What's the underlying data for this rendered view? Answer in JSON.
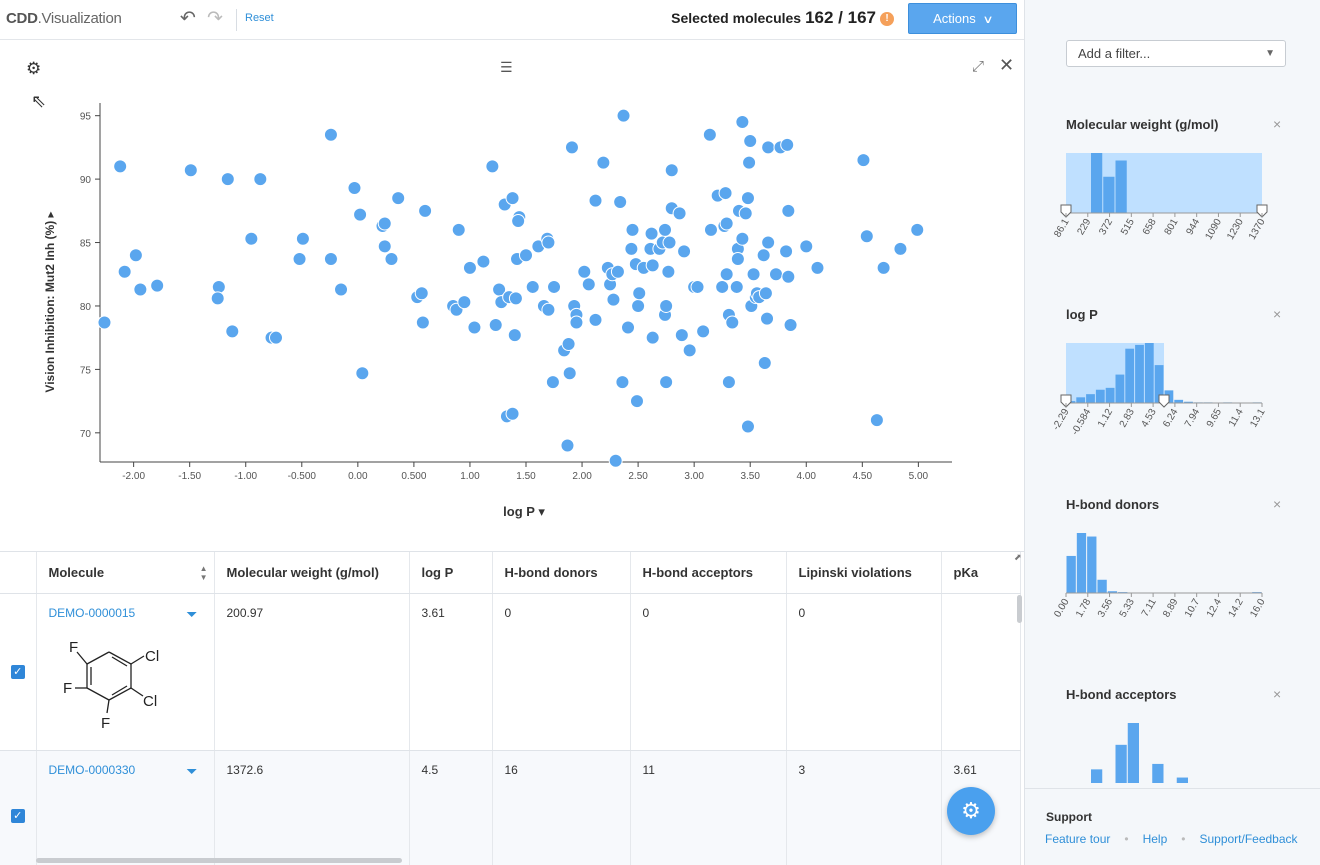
{
  "header": {
    "logo_bold": "CDD",
    "logo_rest": "Visualization",
    "reset_label": "Reset",
    "selected_label": "Selected molecules",
    "selected_count": "162 / 167",
    "warn_glyph": "!",
    "actions_label": "Actions"
  },
  "plot": {
    "y_axis_label": "Vision Inhibition: Mut2 Inh (%)",
    "x_axis_label": "log P"
  },
  "chart_data": {
    "type": "scatter",
    "xlabel": "log P",
    "ylabel": "Vision Inhibition: Mut2 Inh (%)",
    "xlim": [
      -2.3,
      5.3
    ],
    "ylim": [
      67.7,
      96
    ],
    "x_ticks": [
      "-2.00",
      "-1.50",
      "-1.00",
      "-0.500",
      "0.00",
      "0.500",
      "1.00",
      "1.50",
      "2.00",
      "2.50",
      "3.00",
      "3.50",
      "4.00",
      "4.50",
      "5.00"
    ],
    "y_ticks": [
      "95",
      "90",
      "85",
      "80",
      "75",
      "70"
    ],
    "grid": false,
    "point_color": "#5aa6ee",
    "points": [
      [
        -2.26,
        78.7
      ],
      [
        -2.12,
        91.0
      ],
      [
        -2.08,
        82.7
      ],
      [
        -1.98,
        84.0
      ],
      [
        -1.94,
        81.3
      ],
      [
        -1.79,
        81.6
      ],
      [
        -1.49,
        90.7
      ],
      [
        -1.24,
        81.5
      ],
      [
        -1.25,
        80.6
      ],
      [
        -1.16,
        90.0
      ],
      [
        -1.12,
        78.0
      ],
      [
        -0.95,
        85.3
      ],
      [
        -0.87,
        90.0
      ],
      [
        -0.77,
        77.5
      ],
      [
        -0.73,
        77.5
      ],
      [
        -0.52,
        83.7
      ],
      [
        -0.49,
        85.3
      ],
      [
        -0.24,
        93.5
      ],
      [
        -0.24,
        83.7
      ],
      [
        -0.15,
        81.3
      ],
      [
        -0.03,
        89.3
      ],
      [
        0.02,
        87.2
      ],
      [
        0.04,
        74.7
      ],
      [
        0.22,
        86.3
      ],
      [
        0.24,
        86.5
      ],
      [
        0.24,
        84.7
      ],
      [
        0.3,
        83.7
      ],
      [
        0.36,
        88.5
      ],
      [
        0.53,
        80.7
      ],
      [
        0.57,
        81.0
      ],
      [
        0.58,
        78.7
      ],
      [
        0.6,
        87.5
      ],
      [
        0.85,
        80.0
      ],
      [
        0.9,
        86.0
      ],
      [
        0.88,
        79.7
      ],
      [
        0.95,
        80.3
      ],
      [
        1.0,
        83.0
      ],
      [
        1.04,
        78.3
      ],
      [
        1.12,
        83.5
      ],
      [
        1.2,
        91.0
      ],
      [
        1.23,
        78.5
      ],
      [
        1.26,
        81.3
      ],
      [
        1.28,
        80.3
      ],
      [
        1.31,
        88.0
      ],
      [
        1.33,
        71.3
      ],
      [
        1.35,
        80.7
      ],
      [
        1.38,
        71.5
      ],
      [
        1.38,
        88.5
      ],
      [
        1.4,
        77.7
      ],
      [
        1.41,
        80.6
      ],
      [
        1.44,
        87.0
      ],
      [
        1.42,
        83.7
      ],
      [
        1.43,
        86.7
      ],
      [
        1.5,
        84.0
      ],
      [
        1.56,
        81.5
      ],
      [
        1.61,
        84.7
      ],
      [
        1.66,
        80.0
      ],
      [
        1.69,
        85.3
      ],
      [
        1.7,
        85.0
      ],
      [
        1.7,
        79.7
      ],
      [
        1.74,
        74.0
      ],
      [
        1.75,
        81.5
      ],
      [
        1.84,
        76.5
      ],
      [
        1.87,
        69.0
      ],
      [
        1.88,
        77.0
      ],
      [
        1.89,
        74.7
      ],
      [
        1.91,
        92.5
      ],
      [
        1.93,
        80.0
      ],
      [
        1.95,
        79.3
      ],
      [
        1.95,
        78.7
      ],
      [
        2.02,
        82.7
      ],
      [
        2.06,
        81.7
      ],
      [
        2.12,
        78.9
      ],
      [
        2.12,
        88.3
      ],
      [
        2.19,
        91.3
      ],
      [
        2.23,
        83.0
      ],
      [
        2.25,
        81.7
      ],
      [
        2.27,
        82.5
      ],
      [
        2.28,
        80.5
      ],
      [
        2.3,
        67.8
      ],
      [
        2.32,
        82.7
      ],
      [
        2.34,
        88.2
      ],
      [
        2.37,
        95.0
      ],
      [
        2.36,
        74.0
      ],
      [
        2.41,
        78.3
      ],
      [
        2.44,
        84.5
      ],
      [
        2.45,
        86.0
      ],
      [
        2.48,
        83.3
      ],
      [
        2.49,
        72.5
      ],
      [
        2.5,
        80.0
      ],
      [
        2.51,
        81.0
      ],
      [
        2.55,
        83.0
      ],
      [
        2.61,
        84.5
      ],
      [
        2.62,
        85.7
      ],
      [
        2.63,
        77.5
      ],
      [
        2.63,
        83.2
      ],
      [
        2.69,
        84.5
      ],
      [
        2.72,
        85.0
      ],
      [
        2.74,
        79.3
      ],
      [
        2.74,
        86.0
      ],
      [
        2.75,
        80.0
      ],
      [
        2.75,
        74.0
      ],
      [
        2.77,
        82.7
      ],
      [
        2.78,
        85.0
      ],
      [
        2.8,
        90.7
      ],
      [
        2.8,
        87.7
      ],
      [
        2.87,
        87.3
      ],
      [
        2.89,
        77.7
      ],
      [
        2.91,
        84.3
      ],
      [
        2.96,
        76.5
      ],
      [
        3.0,
        81.5
      ],
      [
        3.03,
        81.5
      ],
      [
        3.08,
        78.0
      ],
      [
        3.14,
        93.5
      ],
      [
        3.15,
        86.0
      ],
      [
        3.21,
        88.7
      ],
      [
        3.25,
        81.5
      ],
      [
        3.27,
        86.3
      ],
      [
        3.28,
        88.9
      ],
      [
        3.29,
        82.5
      ],
      [
        3.29,
        86.5
      ],
      [
        3.31,
        79.3
      ],
      [
        3.31,
        74.0
      ],
      [
        3.34,
        78.7
      ],
      [
        3.38,
        81.5
      ],
      [
        3.39,
        84.5
      ],
      [
        3.39,
        83.7
      ],
      [
        3.4,
        87.5
      ],
      [
        3.43,
        94.5
      ],
      [
        3.43,
        85.3
      ],
      [
        3.46,
        87.3
      ],
      [
        3.48,
        70.5
      ],
      [
        3.48,
        88.5
      ],
      [
        3.49,
        91.3
      ],
      [
        3.5,
        93.0
      ],
      [
        3.51,
        80.0
      ],
      [
        3.53,
        82.5
      ],
      [
        3.55,
        80.7
      ],
      [
        3.56,
        81.0
      ],
      [
        3.58,
        80.7
      ],
      [
        3.62,
        84.0
      ],
      [
        3.63,
        75.5
      ],
      [
        3.64,
        81.0
      ],
      [
        3.65,
        79.0
      ],
      [
        3.66,
        85.0
      ],
      [
        3.66,
        92.5
      ],
      [
        3.73,
        82.5
      ],
      [
        3.77,
        92.5
      ],
      [
        3.82,
        84.3
      ],
      [
        3.83,
        92.7
      ],
      [
        3.84,
        82.3
      ],
      [
        3.84,
        87.5
      ],
      [
        3.86,
        78.5
      ],
      [
        4.0,
        84.7
      ],
      [
        4.1,
        83.0
      ],
      [
        4.51,
        91.5
      ],
      [
        4.54,
        85.5
      ],
      [
        4.63,
        71.0
      ],
      [
        4.69,
        83.0
      ],
      [
        4.84,
        84.5
      ],
      [
        4.99,
        86.0
      ]
    ]
  },
  "table": {
    "columns": [
      "Molecule",
      "Molecular weight (g/mol)",
      "log P",
      "H-bond donors",
      "H-bond acceptors",
      "Lipinski violations",
      "pKa"
    ],
    "check_glyph": "✓",
    "filter_glyph": "⏷",
    "rows": [
      {
        "id": "DEMO-0000015",
        "mw": "200.97",
        "logp": "3.61",
        "hbd": "0",
        "hba": "0",
        "lipinski": "0",
        "pka": "",
        "atoms": {
          "f1": "F",
          "f2": "F",
          "f3": "F",
          "cl1": "Cl",
          "cl2": "Cl"
        }
      },
      {
        "id": "DEMO-0000330",
        "mw": "1372.6",
        "logp": "4.5",
        "hbd": "16",
        "hba": "11",
        "lipinski": "3",
        "pka": "3.61"
      }
    ]
  },
  "sidebar": {
    "add_filter_placeholder": "Add a filter...",
    "close_glyph": "×",
    "filters": [
      {
        "title": "Molecular weight (g/mol)",
        "ticks": [
          "86.1",
          "229",
          "372",
          "515",
          "658",
          "801",
          "944",
          "1090",
          "1230",
          "1370"
        ],
        "bars": [
          0,
          0,
          96,
          58,
          84,
          0,
          0,
          0,
          0,
          0,
          0,
          0,
          0,
          0,
          0,
          0
        ],
        "sel_from": 0.0,
        "sel_to": 1.0
      },
      {
        "title": "log P",
        "ticks": [
          "-2.29",
          "-0.584",
          "1.12",
          "2.83",
          "4.53",
          "6.24",
          "7.94",
          "9.65",
          "11.4",
          "13.1"
        ],
        "bars": [
          3,
          9,
          14,
          21,
          24,
          45,
          86,
          92,
          95,
          60,
          20,
          5,
          2,
          1,
          1,
          0,
          1,
          0,
          0,
          1
        ],
        "sel_from": 0.0,
        "sel_to": 0.5
      },
      {
        "title": "H-bond donors",
        "ticks": [
          "0.00",
          "1.78",
          "3.56",
          "5.33",
          "7.11",
          "8.89",
          "10.7",
          "12.4",
          "14.2",
          "16.0"
        ],
        "bars": [
          42,
          68,
          64,
          15,
          2,
          1,
          0,
          0,
          0,
          0,
          0,
          0,
          0,
          0,
          0,
          0,
          0,
          0,
          1
        ],
        "sel_from": null,
        "sel_to": null
      },
      {
        "title": "H-bond acceptors",
        "ticks": [],
        "bars": [
          0,
          0,
          20,
          0,
          56,
          88,
          0,
          28,
          0,
          8,
          0,
          0,
          0,
          0,
          0,
          0
        ],
        "sel_from": null,
        "sel_to": null
      }
    ]
  },
  "support": {
    "title": "Support",
    "links": [
      "Feature tour",
      "Help",
      "Support/Feedback"
    ],
    "sep": "•"
  },
  "colors": {
    "accent": "#5aa6ee",
    "link": "#2f8fd8",
    "hist_bar": "#5aa6ee",
    "hist_sel": "#bfe0ff"
  },
  "icons": {
    "undo": "undo-icon",
    "redo": "redo-icon",
    "gear": "gear-icon",
    "expand": "expand-icon",
    "close": "close-icon",
    "filter": "filter-icon",
    "sort": "sort-icon",
    "chevron": "chevron-down-icon"
  }
}
